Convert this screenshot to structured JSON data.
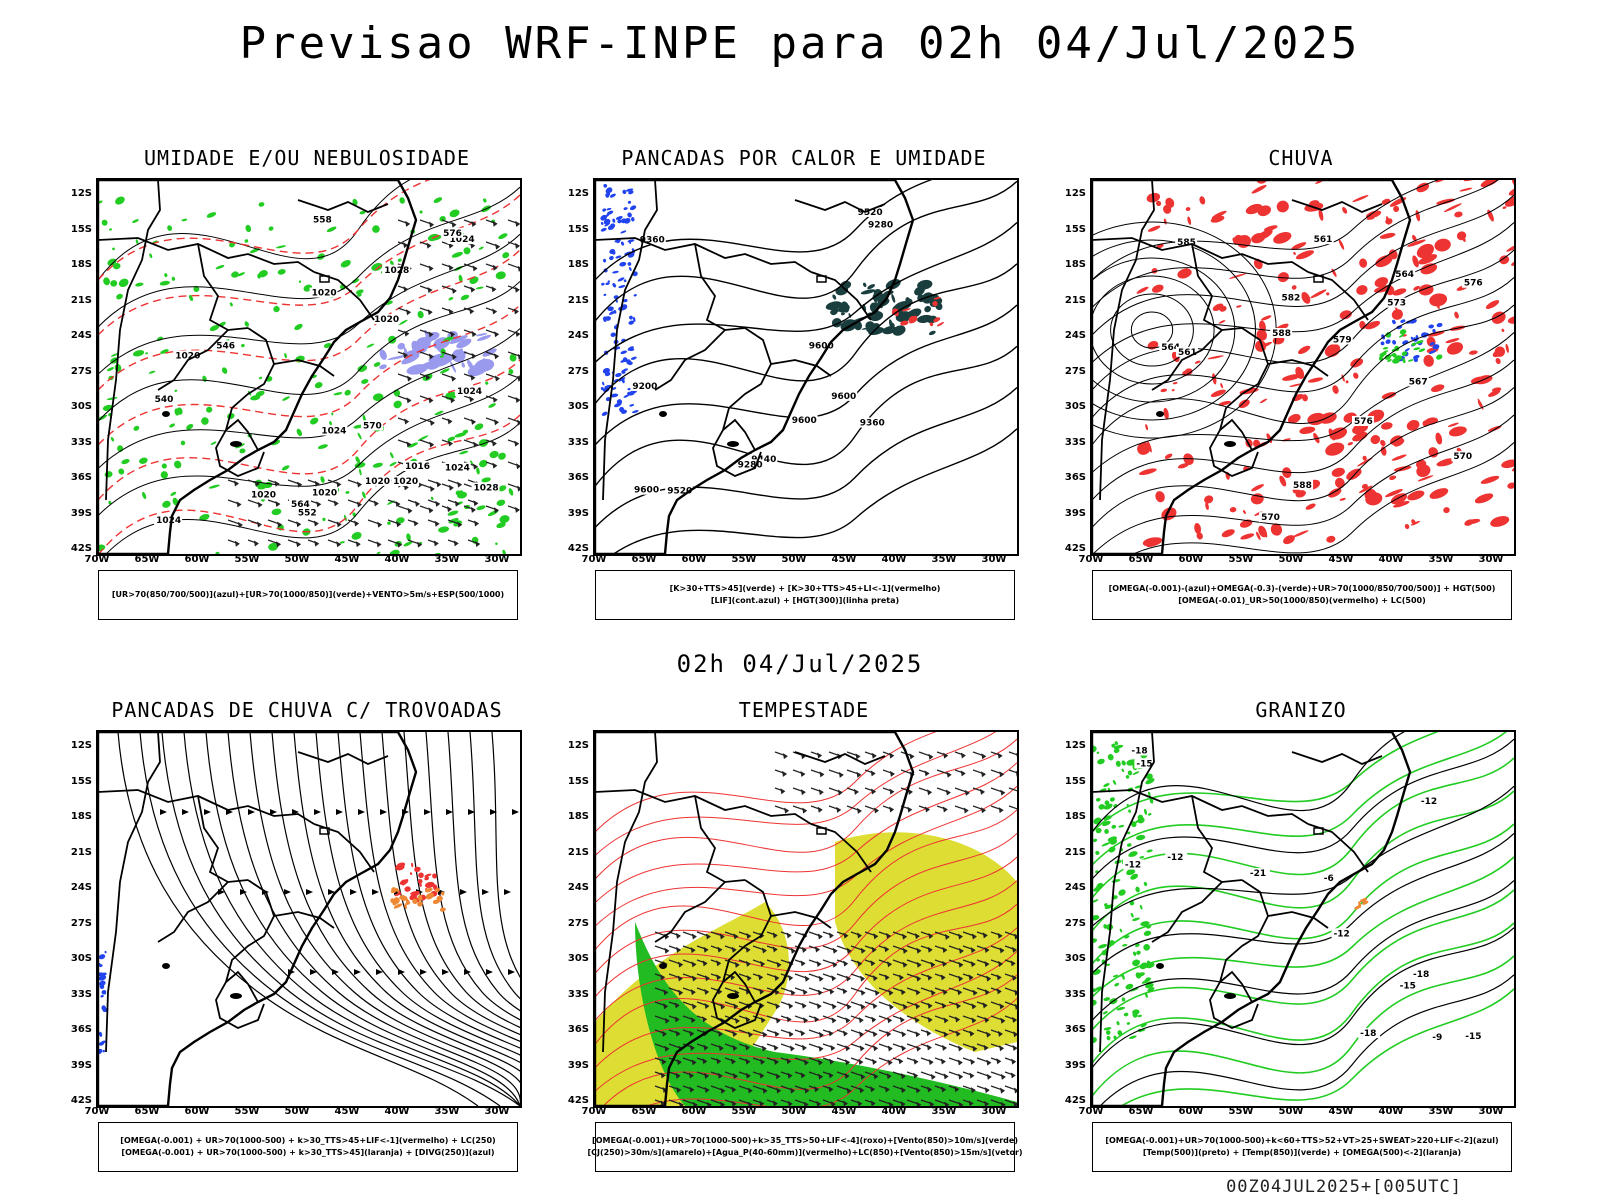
{
  "title": "Previsao WRF-INPE  para 02h 04/Jul/2025",
  "middle_title": "02h 04/Jul/2025",
  "footer": "00Z04JUL2025+[005UTC]",
  "axes": {
    "lat_labels": [
      "12S",
      "15S",
      "18S",
      "21S",
      "24S",
      "27S",
      "30S",
      "33S",
      "36S",
      "39S",
      "42S"
    ],
    "lon_labels": [
      "70W",
      "65W",
      "60W",
      "55W",
      "50W",
      "45W",
      "40W",
      "35W",
      "30W"
    ]
  },
  "colors": {
    "green": "#22cc22",
    "red": "#ee3333",
    "blue": "#2244ee",
    "yellow": "#dddd33",
    "orange": "#ee8833",
    "lavender": "#9999ee",
    "dark_teal": "#1a3d3d"
  },
  "panels": [
    {
      "id": "umidade",
      "title": "UMIDADE E/OU NEBULOSIDADE",
      "legend": [
        "[UR>70(850/700/500)](azul)+[UR>70(1000/850)](verde)+VENTO>5m/s+ESP(500/1000)"
      ],
      "contour_labels": [
        "1016",
        "1020",
        "1020",
        "1020",
        "1024",
        "1024",
        "1024",
        "1028",
        "1028",
        "1024",
        "1020",
        "1020",
        "1020",
        "1024",
        "1020",
        "570",
        "564",
        "558",
        "552",
        "546",
        "540",
        "576"
      ]
    },
    {
      "id": "pancadas-calor",
      "title": "PANCADAS POR CALOR E UMIDADE",
      "legend": [
        "[K>30+TTS>45](verde) + [K>30+TTS>45+LI<-1](vermelho)",
        "[LIF](cont.azul) + [HGT(300)](linha preta)"
      ],
      "contour_labels": [
        "9600",
        "9600",
        "9600",
        "9520",
        "9360",
        "9280",
        "9200",
        "9440",
        "9360",
        "9280",
        "9600",
        "9520"
      ]
    },
    {
      "id": "chuva",
      "title": "CHUVA",
      "legend": [
        "[OMEGA(-0.001)-(azul)+OMEGA(-0.3)-(verde)+UR>70(1000/850/700/500)] + HGT(500)",
        "[OMEGA(-0.01)_UR>50(1000/850)(vermelho) + LC(500)"
      ],
      "contour_labels": [
        "588",
        "585",
        "588",
        "576",
        "570",
        "567",
        "564",
        "561",
        "582",
        "579",
        "576",
        "573",
        "570",
        "564",
        "561"
      ]
    },
    {
      "id": "pancadas-trovoadas",
      "title": "PANCADAS DE CHUVA C/ TROVOADAS",
      "legend": [
        "[OMEGA(-0.001) + UR>70(1000-500) + k>30_TTS>45+LIF<-1](vermelho) + LC(250)",
        "[OMEGA(-0.001) + UR>70(1000-500) + k>30_TTS>45](laranja) + [DIVG(250)](azul)"
      ]
    },
    {
      "id": "tempestade",
      "title": "TEMPESTADE",
      "legend": [
        "[OMEGA(-0.001)+UR>70(1000-500)+k>35_TTS>50+LIF<-4](roxo)+[Vento(850)>10m/s](verde)",
        "[CJ(250)>30m/s](amarelo)+[Agua_P(40-60mm)](vermelho)+LC(850)+[Vento(850)>15m/s](vetor)"
      ]
    },
    {
      "id": "granizo",
      "title": "GRANIZO",
      "legend": [
        "[OMEGA(-0.001)+UR>70(1000-500)+k<60+TTS>52+VT>25+SWEAT>220+LIF<-2](azul)",
        "[Temp(500)](preto) + [Temp(850)](verde) + [OMEGA(500)<-2](laranja)"
      ],
      "contour_labels": [
        "-12",
        "-12",
        "-15",
        "-18",
        "-21",
        "-6",
        "-9",
        "-12",
        "-15",
        "-18",
        "-12",
        "-15",
        "-18"
      ]
    }
  ]
}
